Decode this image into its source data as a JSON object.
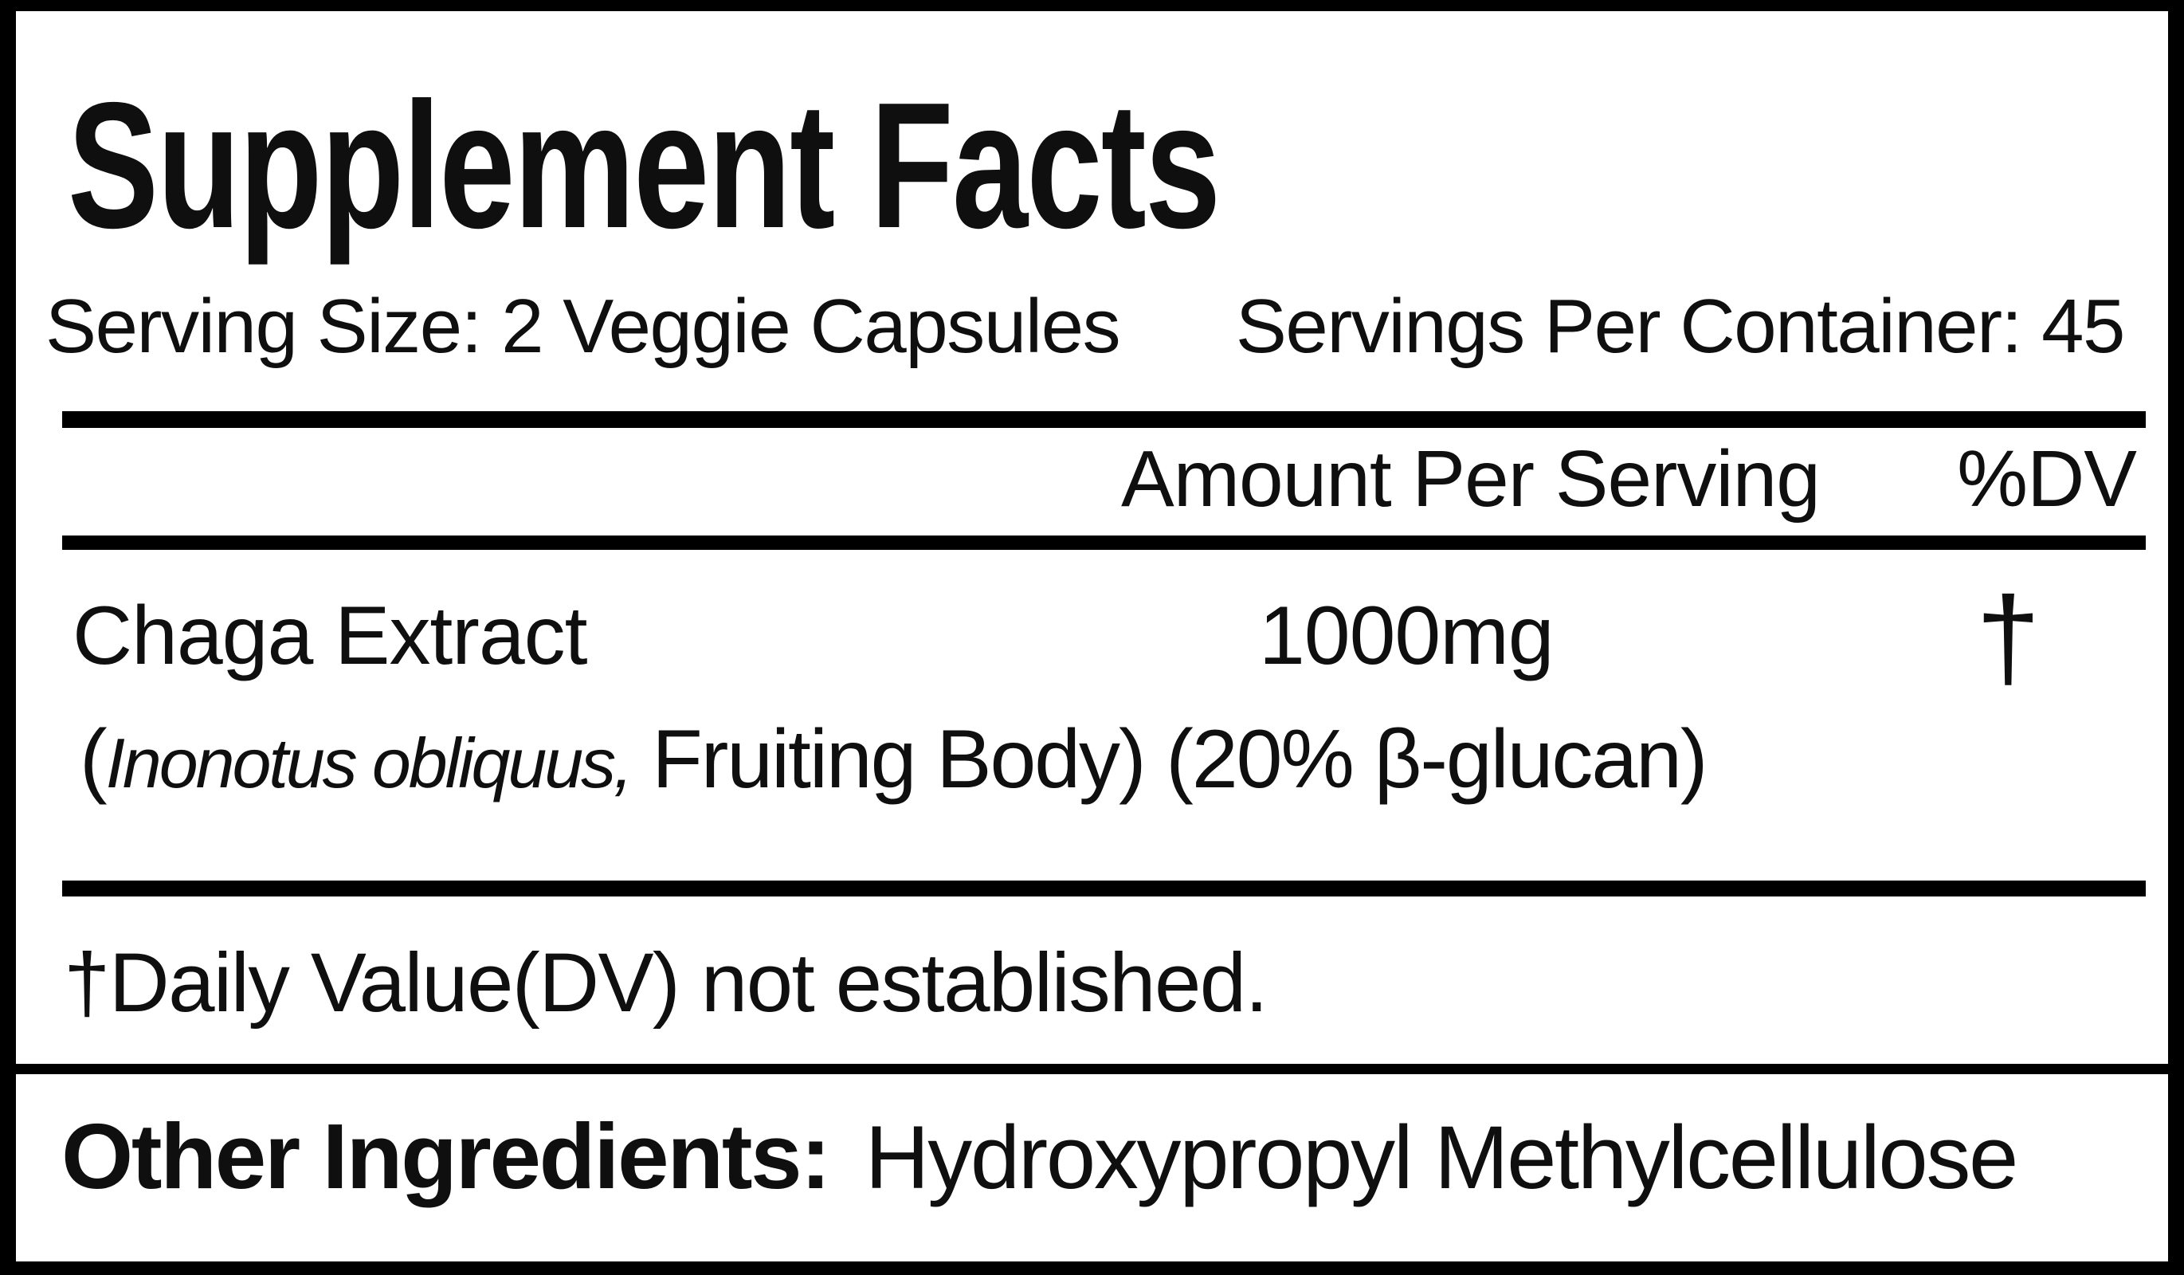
{
  "colors": {
    "background": "#ffffff",
    "text": "#0f0f0f",
    "rule": "#000000"
  },
  "label": {
    "title": "Supplement Facts",
    "serving_size": "Serving Size: 2 Veggie Capsules",
    "servings_per_container": "Servings Per Container: 45",
    "table": {
      "amount_header": "Amount Per Serving",
      "dv_header": "%DV",
      "rows": [
        {
          "name": "Chaga Extract",
          "detail_prefix": "(",
          "detail_latin": "Inonotus obliquus,",
          "detail_rest": " Fruiting Body) (20% β-glucan)",
          "amount": "1000mg",
          "dv": "†"
        }
      ]
    },
    "footnote": "†Daily Value(DV) not established.",
    "other_ingredients_label": "Other Ingredients:",
    "other_ingredients_value": "Hydroxypropyl Methylcellulose"
  }
}
